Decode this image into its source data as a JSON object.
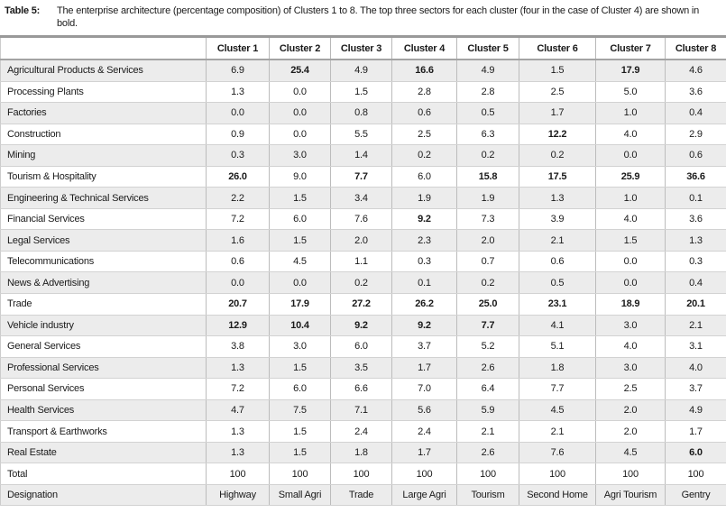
{
  "caption": {
    "label": "Table 5:",
    "text": "The enterprise architecture (percentage composition) of Clusters 1 to 8. The top three sectors for each cluster (four in the case of Cluster 4) are shown in bold."
  },
  "table": {
    "columns": [
      "Cluster 1",
      "Cluster 2",
      "Cluster 3",
      "Cluster 4",
      "Cluster 5",
      "Cluster 6",
      "Cluster 7",
      "Cluster 8"
    ],
    "rows": [
      {
        "label": "Agricultural Products & Services",
        "values": [
          "6.9",
          "25.4",
          "4.9",
          "16.6",
          "4.9",
          "1.5",
          "17.9",
          "4.6"
        ],
        "bold": [
          1,
          3,
          6
        ]
      },
      {
        "label": "Processing Plants",
        "values": [
          "1.3",
          "0.0",
          "1.5",
          "2.8",
          "2.8",
          "2.5",
          "5.0",
          "3.6"
        ],
        "bold": []
      },
      {
        "label": "Factories",
        "values": [
          "0.0",
          "0.0",
          "0.8",
          "0.6",
          "0.5",
          "1.7",
          "1.0",
          "0.4"
        ],
        "bold": []
      },
      {
        "label": "Construction",
        "values": [
          "0.9",
          "0.0",
          "5.5",
          "2.5",
          "6.3",
          "12.2",
          "4.0",
          "2.9"
        ],
        "bold": [
          5
        ]
      },
      {
        "label": "Mining",
        "values": [
          "0.3",
          "3.0",
          "1.4",
          "0.2",
          "0.2",
          "0.2",
          "0.0",
          "0.6"
        ],
        "bold": []
      },
      {
        "label": "Tourism & Hospitality",
        "values": [
          "26.0",
          "9.0",
          "7.7",
          "6.0",
          "15.8",
          "17.5",
          "25.9",
          "36.6"
        ],
        "bold": [
          0,
          2,
          4,
          5,
          6,
          7
        ]
      },
      {
        "label": "Engineering & Technical Services",
        "values": [
          "2.2",
          "1.5",
          "3.4",
          "1.9",
          "1.9",
          "1.3",
          "1.0",
          "0.1"
        ],
        "bold": []
      },
      {
        "label": "Financial Services",
        "values": [
          "7.2",
          "6.0",
          "7.6",
          "9.2",
          "7.3",
          "3.9",
          "4.0",
          "3.6"
        ],
        "bold": [
          3
        ]
      },
      {
        "label": "Legal Services",
        "values": [
          "1.6",
          "1.5",
          "2.0",
          "2.3",
          "2.0",
          "2.1",
          "1.5",
          "1.3"
        ],
        "bold": []
      },
      {
        "label": "Telecommunications",
        "values": [
          "0.6",
          "4.5",
          "1.1",
          "0.3",
          "0.7",
          "0.6",
          "0.0",
          "0.3"
        ],
        "bold": []
      },
      {
        "label": "News & Advertising",
        "values": [
          "0.0",
          "0.0",
          "0.2",
          "0.1",
          "0.2",
          "0.5",
          "0.0",
          "0.4"
        ],
        "bold": []
      },
      {
        "label": "Trade",
        "values": [
          "20.7",
          "17.9",
          "27.2",
          "26.2",
          "25.0",
          "23.1",
          "18.9",
          "20.1"
        ],
        "bold": [
          0,
          1,
          2,
          3,
          4,
          5,
          6,
          7
        ]
      },
      {
        "label": "Vehicle industry",
        "values": [
          "12.9",
          "10.4",
          "9.2",
          "9.2",
          "7.7",
          "4.1",
          "3.0",
          "2.1"
        ],
        "bold": [
          0,
          1,
          2,
          3,
          4
        ]
      },
      {
        "label": "General Services",
        "values": [
          "3.8",
          "3.0",
          "6.0",
          "3.7",
          "5.2",
          "5.1",
          "4.0",
          "3.1"
        ],
        "bold": []
      },
      {
        "label": "Professional Services",
        "values": [
          "1.3",
          "1.5",
          "3.5",
          "1.7",
          "2.6",
          "1.8",
          "3.0",
          "4.0"
        ],
        "bold": []
      },
      {
        "label": "Personal Services",
        "values": [
          "7.2",
          "6.0",
          "6.6",
          "7.0",
          "6.4",
          "7.7",
          "2.5",
          "3.7"
        ],
        "bold": []
      },
      {
        "label": "Health Services",
        "values": [
          "4.7",
          "7.5",
          "7.1",
          "5.6",
          "5.9",
          "4.5",
          "2.0",
          "4.9"
        ],
        "bold": []
      },
      {
        "label": "Transport & Earthworks",
        "values": [
          "1.3",
          "1.5",
          "2.4",
          "2.4",
          "2.1",
          "2.1",
          "2.0",
          "1.7"
        ],
        "bold": []
      },
      {
        "label": "Real Estate",
        "values": [
          "1.3",
          "1.5",
          "1.8",
          "1.7",
          "2.6",
          "7.6",
          "4.5",
          "6.0"
        ],
        "bold": [
          7
        ]
      },
      {
        "label": "Total",
        "values": [
          "100",
          "100",
          "100",
          "100",
          "100",
          "100",
          "100",
          "100"
        ],
        "bold": []
      },
      {
        "label": "Designation",
        "values": [
          "Highway",
          "Small Agri",
          "Trade",
          "Large Agri",
          "Tourism",
          "Second Home",
          "Agri Tourism",
          "Gentry"
        ],
        "bold": []
      }
    ]
  },
  "colors": {
    "stripe": "#ececec",
    "border_heavy": "#999999",
    "border_vertical": "#bcbcbc",
    "border_horizontal": "#d2d2d2",
    "text": "#1a1a1a"
  }
}
